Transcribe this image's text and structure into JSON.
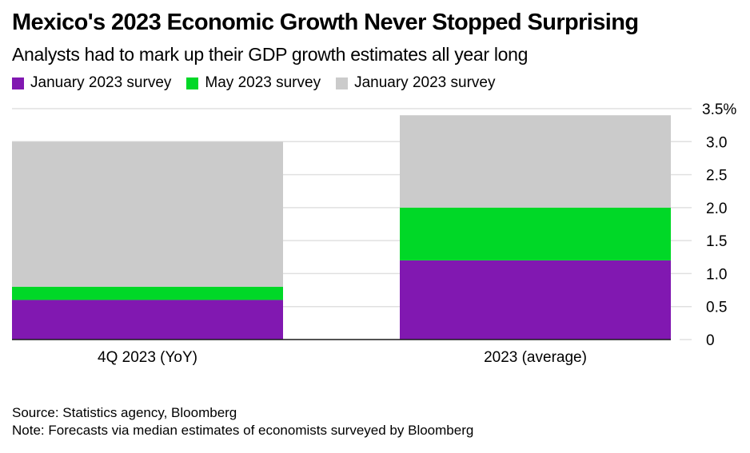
{
  "chart_data": {
    "type": "bar",
    "stacked": true,
    "title": "Mexico's 2023 Economic Growth Never Stopped Surprising",
    "subtitle": "Analysts had to mark up their GDP growth estimates all year long",
    "categories": [
      "4Q 2023 (YoY)",
      "2023 (average)"
    ],
    "series": [
      {
        "name": "January 2023 survey",
        "color": "#8118b1",
        "values": [
          0.6,
          1.2
        ]
      },
      {
        "name": "May 2023 survey",
        "color": "#00d827",
        "values": [
          0.2,
          0.8
        ]
      },
      {
        "name": "January 2023 survey",
        "color": "#cbcbcb",
        "values": [
          2.2,
          1.4
        ]
      }
    ],
    "cumulative_totals": [
      3.0,
      3.4
    ],
    "xlabel": "",
    "ylabel": "",
    "ylim": [
      0,
      3.5
    ],
    "yticks": [
      0,
      0.5,
      1.0,
      1.5,
      2.0,
      2.5,
      3.0,
      3.5
    ],
    "ytick_labels": [
      "0",
      "0.5",
      "1.0",
      "1.5",
      "2.0",
      "2.5",
      "3.0",
      "3.5%"
    ],
    "y_axis_side": "right",
    "grid": true,
    "legend_position": "top-left"
  },
  "footer": {
    "source": "Source: Statistics agency, Bloomberg",
    "note": "Note: Forecasts via median estimates of economists surveyed by Bloomberg"
  }
}
